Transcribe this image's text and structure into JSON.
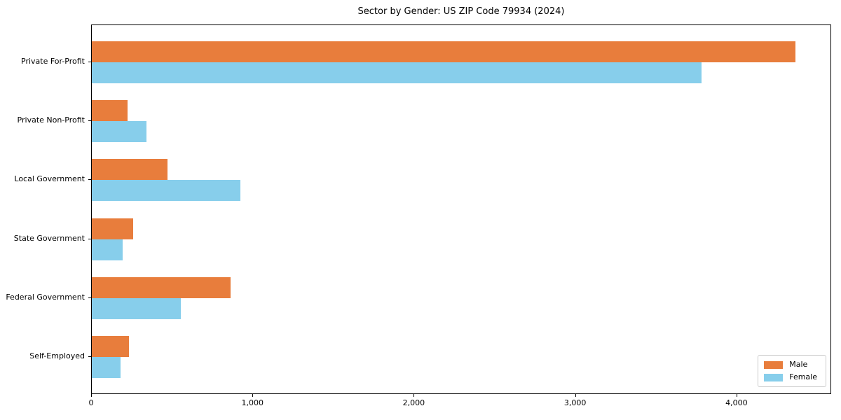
{
  "chart_data": {
    "type": "bar",
    "orientation": "horizontal",
    "title": "Sector by Gender: US ZIP Code 79934 (2024)",
    "categories": [
      "Private For-Profit",
      "Private Non-Profit",
      "Local Government",
      "State Government",
      "Federal Government",
      "Self-Employed"
    ],
    "categories_order": "top-to-bottom",
    "series": [
      {
        "name": "Male",
        "color": "#e87d3c",
        "values": [
          4360,
          220,
          470,
          255,
          860,
          230
        ]
      },
      {
        "name": "Female",
        "color": "#87ceeb",
        "values": [
          3780,
          340,
          920,
          190,
          550,
          180
        ]
      }
    ],
    "xlabel": "",
    "ylabel": "",
    "xlim": [
      0,
      4587
    ],
    "xticks": {
      "values": [
        0,
        1000,
        2000,
        3000,
        4000
      ],
      "labels": [
        "0",
        "1,000",
        "2,000",
        "3,000",
        "4,000"
      ]
    },
    "grid": false,
    "legend": {
      "position": "lower right",
      "entries": [
        "Male",
        "Female"
      ]
    }
  },
  "colors": {
    "background": "#ffffff",
    "axis": "#000000",
    "text": "#000000",
    "legend_border": "#cccccc",
    "male": "#e87d3c",
    "female": "#87ceeb"
  }
}
